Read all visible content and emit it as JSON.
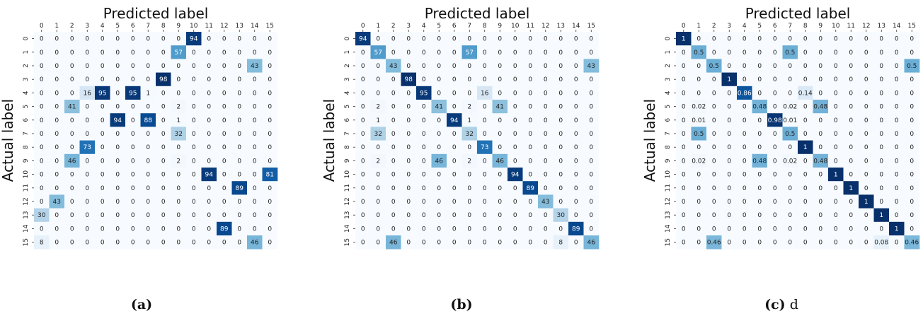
{
  "figure": {
    "xlabel": "Predicted label",
    "ylabel": "Actual label",
    "tick_labels": [
      "0",
      "1",
      "2",
      "3",
      "4",
      "5",
      "6",
      "7",
      "8",
      "9",
      "10",
      "11",
      "12",
      "13",
      "14",
      "15"
    ]
  },
  "colors": {
    "scale": [
      "#f7fbff",
      "#deebf7",
      "#c6dbef",
      "#9ecae1",
      "#6baed6",
      "#4292c6",
      "#2171b5",
      "#08519c",
      "#08306b"
    ],
    "text_dark": "#222222",
    "text_light": "#ffffff"
  },
  "chart_data": [
    {
      "type": "heatmap",
      "caption_label": "(a)",
      "caption_note": "",
      "xlabel": "Predicted label",
      "ylabel": "Actual label",
      "rows": [
        "0",
        "1",
        "2",
        "3",
        "4",
        "5",
        "6",
        "7",
        "8",
        "9",
        "10",
        "11",
        "12",
        "13",
        "14",
        "15"
      ],
      "cols": [
        "0",
        "1",
        "2",
        "3",
        "4",
        "5",
        "6",
        "7",
        "8",
        "9",
        "10",
        "11",
        "12",
        "13",
        "14",
        "15"
      ],
      "vmax": 98,
      "values": [
        [
          "0",
          "0",
          "0",
          "0",
          "0",
          "0",
          "0",
          "0",
          "0",
          "0",
          "94",
          "0",
          "0",
          "0",
          "0",
          "0"
        ],
        [
          "0",
          "0",
          "0",
          "0",
          "0",
          "0",
          "0",
          "0",
          "0",
          "57",
          "0",
          "0",
          "0",
          "0",
          "0",
          "0"
        ],
        [
          "0",
          "0",
          "0",
          "0",
          "0",
          "0",
          "0",
          "0",
          "0",
          "0",
          "0",
          "0",
          "0",
          "0",
          "43",
          "0"
        ],
        [
          "0",
          "0",
          "0",
          "0",
          "0",
          "0",
          "0",
          "0",
          "98",
          "0",
          "0",
          "0",
          "0",
          "0",
          "0",
          "0"
        ],
        [
          "0",
          "0",
          "0",
          "16",
          "95",
          "0",
          "95",
          "1",
          "0",
          "0",
          "0",
          "0",
          "0",
          "0",
          "0",
          "0"
        ],
        [
          "0",
          "0",
          "41",
          "0",
          "0",
          "0",
          "0",
          "0",
          "0",
          "2",
          "0",
          "0",
          "0",
          "0",
          "0",
          "0"
        ],
        [
          "0",
          "0",
          "0",
          "0",
          "0",
          "94",
          "0",
          "88",
          "0",
          "1",
          "0",
          "0",
          "0",
          "0",
          "0",
          "0"
        ],
        [
          "0",
          "0",
          "0",
          "0",
          "0",
          "0",
          "0",
          "0",
          "0",
          "32",
          "0",
          "0",
          "0",
          "0",
          "0",
          "0"
        ],
        [
          "0",
          "0",
          "0",
          "73",
          "0",
          "0",
          "0",
          "0",
          "0",
          "0",
          "0",
          "0",
          "0",
          "0",
          "0",
          "0"
        ],
        [
          "0",
          "0",
          "46",
          "0",
          "0",
          "0",
          "0",
          "0",
          "0",
          "2",
          "0",
          "0",
          "0",
          "0",
          "0",
          "0"
        ],
        [
          "0",
          "0",
          "0",
          "0",
          "0",
          "0",
          "0",
          "0",
          "0",
          "0",
          "0",
          "94",
          "0",
          "0",
          "0",
          "81"
        ],
        [
          "0",
          "0",
          "0",
          "0",
          "0",
          "0",
          "0",
          "0",
          "0",
          "0",
          "0",
          "0",
          "0",
          "89",
          "0",
          "0"
        ],
        [
          "0",
          "43",
          "0",
          "0",
          "0",
          "0",
          "0",
          "0",
          "0",
          "0",
          "0",
          "0",
          "0",
          "0",
          "0",
          "0"
        ],
        [
          "30",
          "0",
          "0",
          "0",
          "0",
          "0",
          "0",
          "0",
          "0",
          "0",
          "0",
          "0",
          "0",
          "0",
          "0",
          "0"
        ],
        [
          "0",
          "0",
          "0",
          "0",
          "0",
          "0",
          "0",
          "0",
          "0",
          "0",
          "0",
          "0",
          "89",
          "0",
          "0",
          "0"
        ],
        [
          "8",
          "0",
          "0",
          "0",
          "0",
          "0",
          "0",
          "0",
          "0",
          "0",
          "0",
          "0",
          "0",
          "0",
          "46",
          "0"
        ]
      ]
    },
    {
      "type": "heatmap",
      "caption_label": "(b)",
      "caption_note": "",
      "xlabel": "Predicted label",
      "ylabel": "Actual label",
      "rows": [
        "0",
        "1",
        "2",
        "3",
        "4",
        "5",
        "6",
        "7",
        "8",
        "9",
        "10",
        "11",
        "12",
        "13",
        "14",
        "15"
      ],
      "cols": [
        "0",
        "1",
        "2",
        "3",
        "4",
        "5",
        "6",
        "7",
        "8",
        "9",
        "10",
        "11",
        "12",
        "13",
        "14",
        "15"
      ],
      "vmax": 98,
      "values": [
        [
          "94",
          "0",
          "0",
          "0",
          "0",
          "0",
          "0",
          "0",
          "0",
          "0",
          "0",
          "0",
          "0",
          "0",
          "0",
          "0"
        ],
        [
          "0",
          "57",
          "0",
          "0",
          "0",
          "0",
          "0",
          "57",
          "0",
          "0",
          "0",
          "0",
          "0",
          "0",
          "0",
          "0"
        ],
        [
          "0",
          "0",
          "43",
          "0",
          "0",
          "0",
          "0",
          "0",
          "0",
          "0",
          "0",
          "0",
          "0",
          "0",
          "0",
          "43"
        ],
        [
          "0",
          "0",
          "0",
          "98",
          "0",
          "0",
          "0",
          "0",
          "0",
          "0",
          "0",
          "0",
          "0",
          "0",
          "0",
          "0"
        ],
        [
          "0",
          "0",
          "0",
          "0",
          "95",
          "0",
          "0",
          "0",
          "16",
          "0",
          "0",
          "0",
          "0",
          "0",
          "0",
          "0"
        ],
        [
          "0",
          "2",
          "0",
          "0",
          "0",
          "41",
          "0",
          "2",
          "0",
          "41",
          "0",
          "0",
          "0",
          "0",
          "0",
          "0"
        ],
        [
          "0",
          "1",
          "0",
          "0",
          "0",
          "0",
          "94",
          "1",
          "0",
          "0",
          "0",
          "0",
          "0",
          "0",
          "0",
          "0"
        ],
        [
          "0",
          "32",
          "0",
          "0",
          "0",
          "0",
          "0",
          "32",
          "0",
          "0",
          "0",
          "0",
          "0",
          "0",
          "0",
          "0"
        ],
        [
          "0",
          "0",
          "0",
          "0",
          "0",
          "0",
          "0",
          "0",
          "73",
          "0",
          "0",
          "0",
          "0",
          "0",
          "0",
          "0"
        ],
        [
          "0",
          "2",
          "0",
          "0",
          "0",
          "46",
          "0",
          "2",
          "0",
          "46",
          "0",
          "0",
          "0",
          "0",
          "0",
          "0"
        ],
        [
          "0",
          "0",
          "0",
          "0",
          "0",
          "0",
          "0",
          "0",
          "0",
          "0",
          "94",
          "0",
          "0",
          "0",
          "0",
          "0"
        ],
        [
          "0",
          "0",
          "0",
          "0",
          "0",
          "0",
          "0",
          "0",
          "0",
          "0",
          "0",
          "89",
          "0",
          "0",
          "0",
          "0"
        ],
        [
          "0",
          "0",
          "0",
          "0",
          "0",
          "0",
          "0",
          "0",
          "0",
          "0",
          "0",
          "0",
          "43",
          "0",
          "0",
          "0"
        ],
        [
          "0",
          "0",
          "0",
          "0",
          "0",
          "0",
          "0",
          "0",
          "0",
          "0",
          "0",
          "0",
          "0",
          "30",
          "0",
          "0"
        ],
        [
          "0",
          "0",
          "0",
          "0",
          "0",
          "0",
          "0",
          "0",
          "0",
          "0",
          "0",
          "0",
          "0",
          "0",
          "89",
          "0"
        ],
        [
          "0",
          "0",
          "46",
          "0",
          "0",
          "0",
          "0",
          "0",
          "0",
          "0",
          "0",
          "0",
          "0",
          "8",
          "0",
          "46"
        ]
      ]
    },
    {
      "type": "heatmap",
      "caption_label": "(c)",
      "caption_note": "d",
      "xlabel": "Predicted label",
      "ylabel": "Actual label",
      "rows": [
        "0",
        "1",
        "2",
        "3",
        "4",
        "5",
        "6",
        "7",
        "8",
        "9",
        "10",
        "11",
        "12",
        "13",
        "14",
        "15"
      ],
      "cols": [
        "0",
        "1",
        "2",
        "3",
        "4",
        "5",
        "6",
        "7",
        "8",
        "9",
        "10",
        "11",
        "12",
        "13",
        "14",
        "15"
      ],
      "vmax": 1,
      "values": [
        [
          "1",
          "0",
          "0",
          "0",
          "0",
          "0",
          "0",
          "0",
          "0",
          "0",
          "0",
          "0",
          "0",
          "0",
          "0",
          "0"
        ],
        [
          "0",
          "0.5",
          "0",
          "0",
          "0",
          "0",
          "0",
          "0.5",
          "0",
          "0",
          "0",
          "0",
          "0",
          "0",
          "0",
          "0"
        ],
        [
          "0",
          "0",
          "0.5",
          "0",
          "0",
          "0",
          "0",
          "0",
          "0",
          "0",
          "0",
          "0",
          "0",
          "0",
          "0",
          "0.5"
        ],
        [
          "0",
          "0",
          "0",
          "1",
          "0",
          "0",
          "0",
          "0",
          "0",
          "0",
          "0",
          "0",
          "0",
          "0",
          "0",
          "0"
        ],
        [
          "0",
          "0",
          "0",
          "0",
          "0.86",
          "0",
          "0",
          "0",
          "0.14",
          "0",
          "0",
          "0",
          "0",
          "0",
          "0",
          "0"
        ],
        [
          "0",
          "0.02",
          "0",
          "0",
          "0",
          "0.48",
          "0",
          "0.02",
          "0",
          "0.48",
          "0",
          "0",
          "0",
          "0",
          "0",
          "0"
        ],
        [
          "0",
          "0.01",
          "0",
          "0",
          "0",
          "0",
          "0.98",
          "0.01",
          "0",
          "0",
          "0",
          "0",
          "0",
          "0",
          "0",
          "0"
        ],
        [
          "0",
          "0.5",
          "0",
          "0",
          "0",
          "0",
          "0",
          "0.5",
          "0",
          "0",
          "0",
          "0",
          "0",
          "0",
          "0",
          "0"
        ],
        [
          "0",
          "0",
          "0",
          "0",
          "0",
          "0",
          "0",
          "0",
          "1",
          "0",
          "0",
          "0",
          "0",
          "0",
          "0",
          "0"
        ],
        [
          "0",
          "0.02",
          "0",
          "0",
          "0",
          "0.48",
          "0",
          "0.02",
          "0",
          "0.48",
          "0",
          "0",
          "0",
          "0",
          "0",
          "0"
        ],
        [
          "0",
          "0",
          "0",
          "0",
          "0",
          "0",
          "0",
          "0",
          "0",
          "0",
          "1",
          "0",
          "0",
          "0",
          "0",
          "0"
        ],
        [
          "0",
          "0",
          "0",
          "0",
          "0",
          "0",
          "0",
          "0",
          "0",
          "0",
          "0",
          "1",
          "0",
          "0",
          "0",
          "0"
        ],
        [
          "0",
          "0",
          "0",
          "0",
          "0",
          "0",
          "0",
          "0",
          "0",
          "0",
          "0",
          "0",
          "1",
          "0",
          "0",
          "0"
        ],
        [
          "0",
          "0",
          "0",
          "0",
          "0",
          "0",
          "0",
          "0",
          "0",
          "0",
          "0",
          "0",
          "0",
          "1",
          "0",
          "0"
        ],
        [
          "0",
          "0",
          "0",
          "0",
          "0",
          "0",
          "0",
          "0",
          "0",
          "0",
          "0",
          "0",
          "0",
          "0",
          "1",
          "0"
        ],
        [
          "0",
          "0",
          "0.46",
          "0",
          "0",
          "0",
          "0",
          "0",
          "0",
          "0",
          "0",
          "0",
          "0",
          "0.08",
          "0",
          "0.46"
        ]
      ]
    }
  ]
}
